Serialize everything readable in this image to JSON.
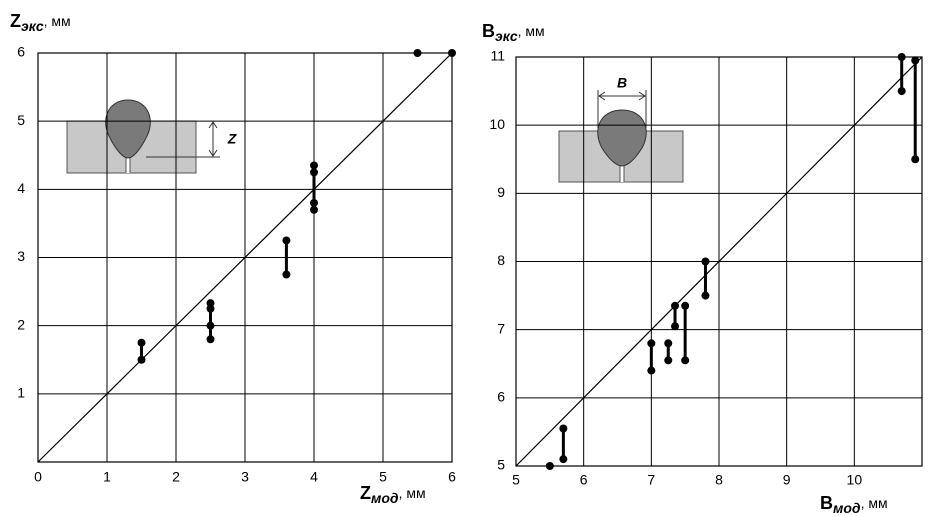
{
  "chart_data": [
    {
      "type": "scatter-range",
      "ylabel": {
        "main": "Z",
        "sub": "экс",
        "unit": ", мм"
      },
      "xlabel": {
        "main": "Z",
        "sub": "мод",
        "unit": ", мм"
      },
      "inset_label": "Z",
      "xlim": [
        0,
        6
      ],
      "ylim": [
        0,
        6
      ],
      "xticks": [
        0,
        1,
        2,
        3,
        4,
        5,
        6
      ],
      "yticks": [
        1,
        2,
        3,
        4,
        5,
        6
      ],
      "grid": true,
      "diagonal": true,
      "color": "#000000",
      "groups": [
        {
          "x": 1.5,
          "y": [
            1.75,
            1.5
          ]
        },
        {
          "x": 2.5,
          "y": [
            2.33,
            2.25,
            2.0,
            1.8
          ]
        },
        {
          "x": 3.6,
          "y": [
            3.25,
            2.75
          ]
        },
        {
          "x": 4.0,
          "y": [
            4.35,
            4.25,
            3.8,
            3.7
          ]
        },
        {
          "x": 5.5,
          "y": [
            6.0
          ]
        },
        {
          "x": 6.0,
          "y": [
            6.0
          ]
        }
      ]
    },
    {
      "type": "scatter-range",
      "ylabel": {
        "main": "B",
        "sub": "экс",
        "unit": ", мм"
      },
      "xlabel": {
        "main": "B",
        "sub": "мод",
        "unit": ", мм"
      },
      "inset_label": "B",
      "xlim": [
        5,
        11
      ],
      "ylim": [
        5,
        11
      ],
      "xticks": [
        5,
        6,
        7,
        8,
        9,
        10
      ],
      "yticks": [
        5,
        6,
        7,
        8,
        9,
        10,
        11
      ],
      "grid": true,
      "diagonal": true,
      "color": "#000000",
      "groups": [
        {
          "x": 5.5,
          "y": [
            5.0
          ]
        },
        {
          "x": 5.7,
          "y": [
            5.55,
            5.1
          ]
        },
        {
          "x": 7.0,
          "y": [
            6.8,
            6.4
          ]
        },
        {
          "x": 7.25,
          "y": [
            6.8,
            6.55
          ]
        },
        {
          "x": 7.35,
          "y": [
            7.35,
            7.05
          ]
        },
        {
          "x": 7.5,
          "y": [
            7.35,
            6.55
          ]
        },
        {
          "x": 7.8,
          "y": [
            8.0,
            7.5
          ]
        },
        {
          "x": 10.7,
          "y": [
            11.0,
            10.5
          ]
        },
        {
          "x": 10.9,
          "y": [
            10.95,
            9.5
          ]
        }
      ]
    }
  ]
}
